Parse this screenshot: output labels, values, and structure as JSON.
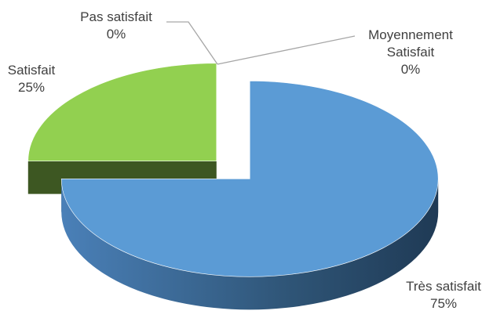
{
  "chart_data": {
    "type": "pie",
    "categories": [
      "Très satisfait",
      "Moyennement Satisfait",
      "Pas satisfait",
      "Satisfait"
    ],
    "values": [
      75,
      0,
      0,
      25
    ],
    "value_labels": [
      "75%",
      "0%",
      "0%",
      "25%"
    ],
    "colors": [
      "#5b9bd5",
      "#ed7d31",
      "#a5a5a5",
      "#92d050"
    ]
  }
}
